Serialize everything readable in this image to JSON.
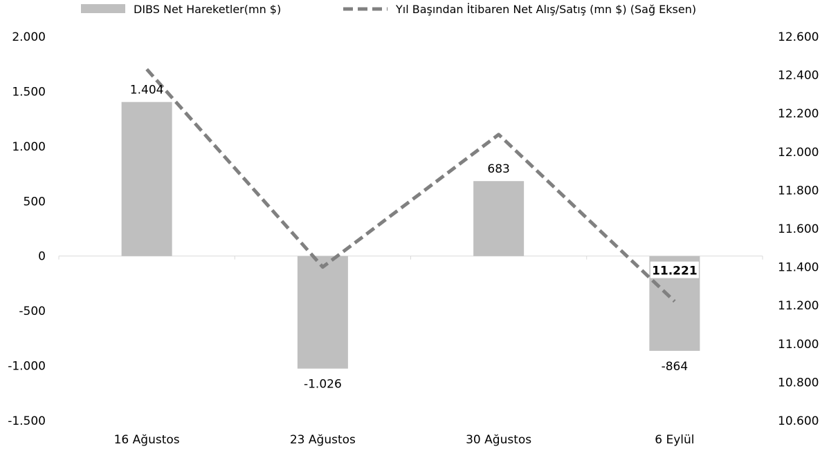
{
  "chart_data": {
    "type": "bar",
    "categories": [
      "16 Ağustos",
      "23 Ağustos",
      "30 Ağustos",
      "6 Eylül"
    ],
    "series": [
      {
        "name": "DIBS Net Hareketler(mn $)",
        "type": "bar",
        "axis": "left",
        "values": [
          1404,
          -1026,
          683,
          -864
        ],
        "labels": [
          "1.404",
          "-1.026",
          "683",
          "-864"
        ],
        "color": "#bfbfbf"
      },
      {
        "name": "Yıl Başından İtibaren Net Alış/Satış (mn $) (Sağ Eksen)",
        "type": "line",
        "style": "dashed",
        "axis": "right",
        "values": [
          12430,
          11400,
          12090,
          11221
        ],
        "labels": [
          "",
          "",
          "",
          "11.221"
        ],
        "color": "#808080"
      }
    ],
    "left_axis": {
      "ylim": [
        -1500,
        2000
      ],
      "ticks": [
        2000,
        1500,
        1000,
        500,
        0,
        -500,
        -1000,
        -1500
      ],
      "tick_labels": [
        "2.000",
        "1.500",
        "1.000",
        "500",
        "0",
        "-500",
        "-1.000",
        "-1.500"
      ]
    },
    "right_axis": {
      "ylim": [
        10600,
        12600
      ],
      "ticks": [
        12600,
        12400,
        12200,
        12000,
        11800,
        11600,
        11400,
        11200,
        11000,
        10800,
        10600
      ],
      "tick_labels": [
        "12.600",
        "12.400",
        "12.200",
        "12.000",
        "11.800",
        "11.600",
        "11.400",
        "11.200",
        "11.000",
        "10.800",
        "10.600"
      ]
    },
    "legend_position": "top",
    "grid": false
  }
}
